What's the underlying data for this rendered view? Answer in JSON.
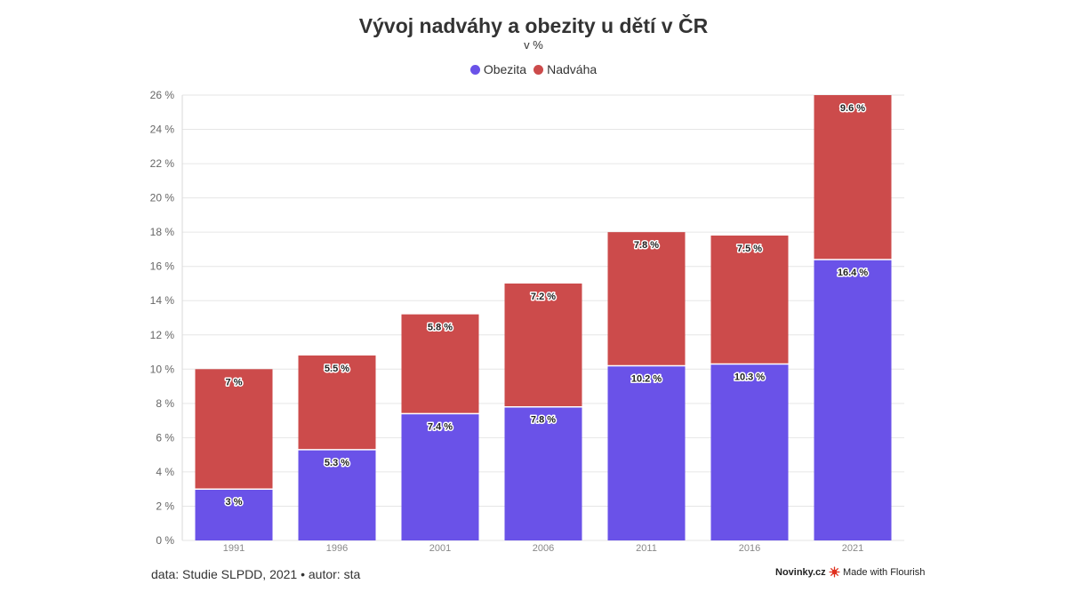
{
  "chart_data": {
    "type": "bar",
    "stacked": true,
    "title": "Vývoj nadváhy a obezity u dětí v ČR",
    "subtitle": "v %",
    "categories": [
      "1991",
      "1996",
      "2001",
      "2006",
      "2011",
      "2016",
      "2021"
    ],
    "series": [
      {
        "name": "Obezita",
        "color": "#6a52e8",
        "values": [
          3,
          5.3,
          7.4,
          7.8,
          10.2,
          10.3,
          16.4
        ],
        "labels": [
          "3 %",
          "5.3 %",
          "7.4 %",
          "7.8 %",
          "10.2 %",
          "10.3 %",
          "16.4 %"
        ]
      },
      {
        "name": "Nadváha",
        "color": "#cc4b4b",
        "values": [
          7,
          5.5,
          5.8,
          7.2,
          7.8,
          7.5,
          9.6
        ],
        "labels": [
          "7 %",
          "5.5 %",
          "5.8 %",
          "7.2 %",
          "7.8 %",
          "7.5 %",
          "9.6 %"
        ]
      }
    ],
    "ylim": [
      0,
      26
    ],
    "yticks": [
      0,
      2,
      4,
      6,
      8,
      10,
      12,
      14,
      16,
      18,
      20,
      22,
      24,
      26
    ],
    "ytick_labels": [
      "0 %",
      "2 %",
      "4 %",
      "6 %",
      "8 %",
      "10 %",
      "12 %",
      "14 %",
      "16 %",
      "18 %",
      "20 %",
      "22 %",
      "24 %",
      "26 %"
    ],
    "grid": true,
    "legend_position": "top-center"
  },
  "footer": {
    "source": "data: Studie SLPDD, 2021 • autor: sta",
    "brand": "Novinky.cz",
    "made_with": "Made with Flourish"
  }
}
